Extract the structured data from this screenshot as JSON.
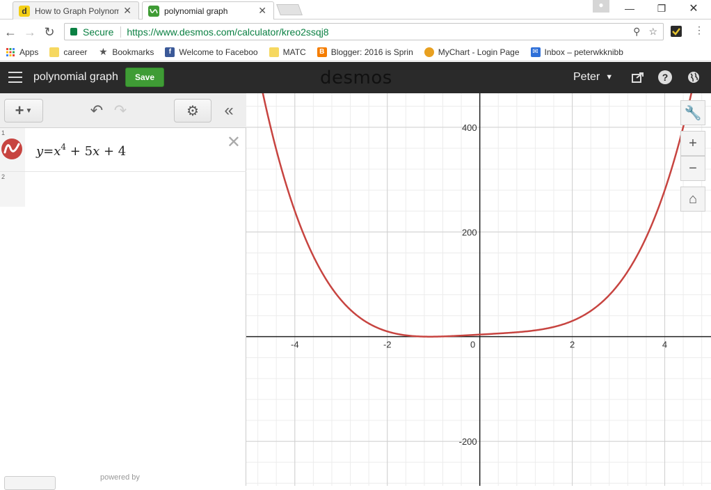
{
  "browser": {
    "tabs": [
      {
        "title": "How to Graph Polynomia",
        "favicon": "d",
        "active": false
      },
      {
        "title": "polynomial graph",
        "favicon": "desmos",
        "active": true
      }
    ],
    "address": {
      "secure_label": "Secure",
      "url": "https://www.desmos.com/calculator/kreo2ssqj8"
    },
    "bookmarks": [
      {
        "label": "Apps",
        "icon": "apps-grid-icon"
      },
      {
        "label": "career",
        "icon": "folder-icon"
      },
      {
        "label": "Bookmarks",
        "icon": "star-icon"
      },
      {
        "label": "Welcome to Faceboo",
        "icon": "facebook-icon"
      },
      {
        "label": "MATC",
        "icon": "folder-icon"
      },
      {
        "label": "Blogger: 2016 is Sprin",
        "icon": "blogger-icon"
      },
      {
        "label": "MyChart - Login Page",
        "icon": "mychart-icon"
      },
      {
        "label": "Inbox – peterwkknibb",
        "icon": "mail-icon"
      }
    ]
  },
  "desmos": {
    "graph_title": "polynomial graph",
    "save_label": "Save",
    "logo": "desmos",
    "user": "Peter",
    "brand_color": "#3f9c35"
  },
  "expressions": [
    {
      "index": "1",
      "lhs": "y",
      "eq": "=",
      "base": "x",
      "exp": "4",
      "rest_1": "+ 5",
      "var": "x",
      "rest_2": "+  4",
      "color": "#c74440"
    },
    {
      "index": "2"
    }
  ],
  "powered_by": "powered by",
  "chart_data": {
    "type": "line",
    "function": "y = x^4 + 5x + 4",
    "xlim": [
      -5.05,
      5.0
    ],
    "ylim": [
      -285,
      465
    ],
    "x_ticks": [
      -4,
      -2,
      0,
      2,
      4
    ],
    "y_ticks": [
      -200,
      200,
      400
    ],
    "tick_labels_x": [
      "-4",
      "-2",
      "0",
      "2",
      "4"
    ],
    "tick_labels_y": [
      "-200",
      "200",
      "400"
    ],
    "series": [
      {
        "color": "#c74440"
      }
    ],
    "grid": true
  }
}
